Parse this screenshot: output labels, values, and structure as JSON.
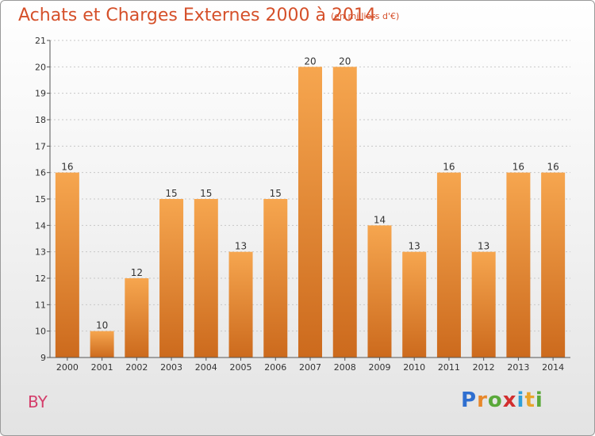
{
  "title": "Achats et Charges Externes 2000 à 2014",
  "subtitle": "(en milliers d'€)",
  "commune": "BY",
  "logo": {
    "text": "Proxiti",
    "letters": [
      {
        "ch": "P",
        "color": "#2f6fd0"
      },
      {
        "ch": "r",
        "color": "#e8882b"
      },
      {
        "ch": "o",
        "color": "#5aa93a"
      },
      {
        "ch": "x",
        "color": "#d22f2f"
      },
      {
        "ch": "i",
        "color": "#2f9fd8"
      },
      {
        "ch": "t",
        "color": "#e8a52b"
      },
      {
        "ch": "i",
        "color": "#5aa93a"
      }
    ]
  },
  "colors": {
    "bar_top": "#f6a64f",
    "bar_bottom": "#cc6a1d",
    "title": "#d5502a",
    "axis": "#555555"
  },
  "chart_data": {
    "type": "bar",
    "title": "Achats et Charges Externes 2000 à 2014",
    "subtitle": "(en milliers d'€)",
    "categories": [
      "2000",
      "2001",
      "2002",
      "2003",
      "2004",
      "2005",
      "2006",
      "2007",
      "2008",
      "2009",
      "2010",
      "2011",
      "2012",
      "2013",
      "2014"
    ],
    "values": [
      16,
      10,
      12,
      15,
      15,
      13,
      15,
      20,
      20,
      14,
      13,
      16,
      13,
      16,
      16
    ],
    "ylim": [
      9,
      21
    ],
    "yticks": [
      9,
      10,
      11,
      12,
      13,
      14,
      15,
      16,
      17,
      18,
      19,
      20,
      21
    ],
    "grid": true,
    "data_labels": true,
    "xlabel": "",
    "ylabel": ""
  }
}
